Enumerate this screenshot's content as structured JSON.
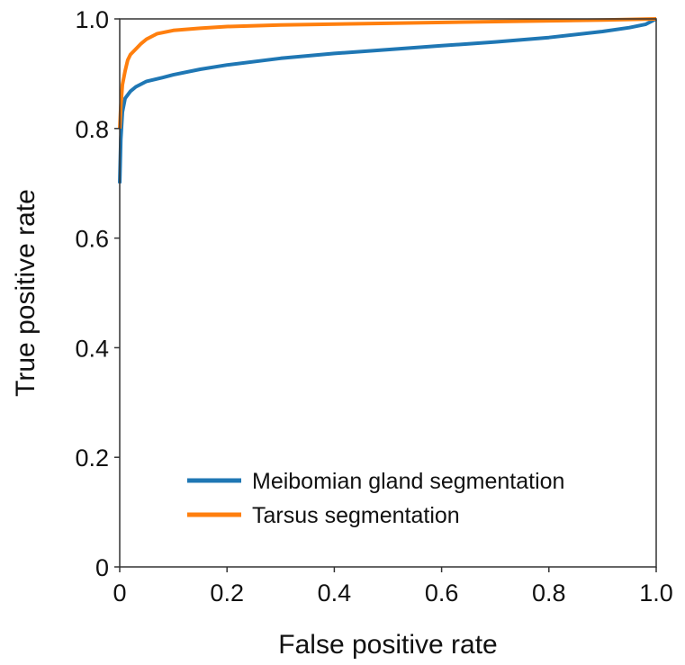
{
  "chart_data": {
    "type": "line",
    "title": "",
    "xlabel": "False positive rate",
    "ylabel": "True positive rate",
    "xlim": [
      0,
      1
    ],
    "ylim": [
      0,
      1
    ],
    "xticks": [
      {
        "value": 0,
        "label": "0"
      },
      {
        "value": 0.2,
        "label": "0.2"
      },
      {
        "value": 0.4,
        "label": "0.4"
      },
      {
        "value": 0.6,
        "label": "0.6"
      },
      {
        "value": 0.8,
        "label": "0.8"
      },
      {
        "value": 1.0,
        "label": "1.0"
      }
    ],
    "yticks": [
      {
        "value": 0,
        "label": "0"
      },
      {
        "value": 0.2,
        "label": "0.2"
      },
      {
        "value": 0.4,
        "label": "0.4"
      },
      {
        "value": 0.6,
        "label": "0.6"
      },
      {
        "value": 0.8,
        "label": "0.8"
      },
      {
        "value": 1.0,
        "label": "1.0"
      }
    ],
    "grid": false,
    "legend_position": "lower-right",
    "series": [
      {
        "name": "Meibomian gland segmentation",
        "color": "#1f77b4",
        "points": [
          [
            0,
            0.7
          ],
          [
            0.002,
            0.78
          ],
          [
            0.005,
            0.83
          ],
          [
            0.01,
            0.855
          ],
          [
            0.02,
            0.868
          ],
          [
            0.03,
            0.876
          ],
          [
            0.05,
            0.886
          ],
          [
            0.08,
            0.893
          ],
          [
            0.1,
            0.898
          ],
          [
            0.15,
            0.908
          ],
          [
            0.2,
            0.916
          ],
          [
            0.3,
            0.928
          ],
          [
            0.4,
            0.937
          ],
          [
            0.5,
            0.944
          ],
          [
            0.6,
            0.951
          ],
          [
            0.7,
            0.958
          ],
          [
            0.8,
            0.966
          ],
          [
            0.9,
            0.977
          ],
          [
            0.95,
            0.984
          ],
          [
            0.98,
            0.99
          ],
          [
            1.0,
            1.0
          ]
        ]
      },
      {
        "name": "Tarsus segmentation",
        "color": "#ff7f0e",
        "points": [
          [
            0,
            0.8
          ],
          [
            0.002,
            0.84
          ],
          [
            0.005,
            0.88
          ],
          [
            0.01,
            0.905
          ],
          [
            0.015,
            0.925
          ],
          [
            0.02,
            0.935
          ],
          [
            0.03,
            0.945
          ],
          [
            0.04,
            0.955
          ],
          [
            0.05,
            0.963
          ],
          [
            0.07,
            0.973
          ],
          [
            0.1,
            0.979
          ],
          [
            0.15,
            0.983
          ],
          [
            0.2,
            0.986
          ],
          [
            0.3,
            0.989
          ],
          [
            0.5,
            0.992
          ],
          [
            0.7,
            0.995
          ],
          [
            0.9,
            0.998
          ],
          [
            1.0,
            1.0
          ]
        ]
      }
    ]
  }
}
